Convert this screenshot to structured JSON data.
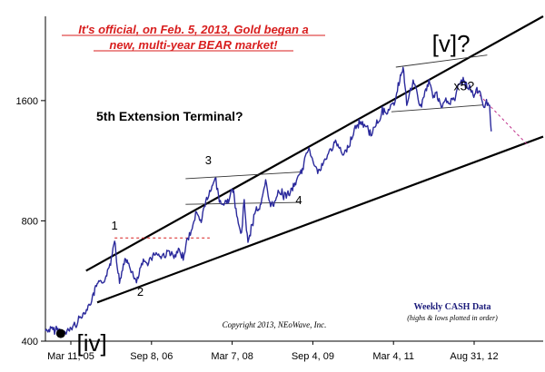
{
  "chart_data": {
    "type": "line",
    "title_lines": [
      "It's official, on Feb. 5, 2013, Gold began a",
      "new, multi-year BEAR market!"
    ],
    "xlabel": "",
    "ylabel": "",
    "y_scale": "log",
    "ylim": [
      400,
      2600
    ],
    "yticks": [
      400,
      800,
      1600
    ],
    "x_tick_labels": [
      "Mar 11, 05",
      "Sep 8, 06",
      "Mar 7, 08",
      "Sep 4, 09",
      "Mar 4, 11",
      "Aug 31, 12"
    ],
    "xlim": [
      "2005-02-01",
      "2014-03-31"
    ],
    "grid": false,
    "series": [
      {
        "name": "",
        "color": "#2b2a9c",
        "points": [
          [
            "2005-02-01",
            425
          ],
          [
            "2005-04-15",
            428
          ],
          [
            "2005-06-15",
            418
          ],
          [
            "2005-08-15",
            438
          ],
          [
            "2005-09-30",
            462
          ],
          [
            "2005-11-15",
            485
          ],
          [
            "2005-12-15",
            515
          ],
          [
            "2006-01-15",
            555
          ],
          [
            "2006-02-15",
            558
          ],
          [
            "2006-03-15",
            580
          ],
          [
            "2006-04-15",
            630
          ],
          [
            "2006-05-12",
            725
          ],
          [
            "2006-05-25",
            645
          ],
          [
            "2006-06-14",
            560
          ],
          [
            "2006-07-15",
            635
          ],
          [
            "2006-08-15",
            625
          ],
          [
            "2006-09-15",
            580
          ],
          [
            "2006-10-06",
            560
          ],
          [
            "2006-11-15",
            625
          ],
          [
            "2006-12-15",
            630
          ],
          [
            "2007-02-15",
            668
          ],
          [
            "2007-03-15",
            650
          ],
          [
            "2007-05-15",
            670
          ],
          [
            "2007-06-15",
            645
          ],
          [
            "2007-07-15",
            670
          ],
          [
            "2007-08-16",
            655
          ],
          [
            "2007-09-15",
            720
          ],
          [
            "2007-10-15",
            760
          ],
          [
            "2007-11-08",
            840
          ],
          [
            "2007-12-15",
            800
          ],
          [
            "2008-01-15",
            900
          ],
          [
            "2008-02-15",
            940
          ],
          [
            "2008-03-17",
            1030
          ],
          [
            "2008-04-15",
            900
          ],
          [
            "2008-05-15",
            880
          ],
          [
            "2008-06-15",
            900
          ],
          [
            "2008-07-15",
            960
          ],
          [
            "2008-08-15",
            800
          ],
          [
            "2008-09-11",
            740
          ],
          [
            "2008-09-29",
            900
          ],
          [
            "2008-10-24",
            700
          ],
          [
            "2008-11-15",
            760
          ],
          [
            "2008-12-15",
            860
          ],
          [
            "2009-01-15",
            860
          ],
          [
            "2009-02-20",
            1000
          ],
          [
            "2009-03-15",
            900
          ],
          [
            "2009-04-15",
            870
          ],
          [
            "2009-05-15",
            960
          ],
          [
            "2009-06-15",
            930
          ],
          [
            "2009-07-15",
            930
          ],
          [
            "2009-08-15",
            950
          ],
          [
            "2009-09-15",
            1010
          ],
          [
            "2009-10-15",
            1050
          ],
          [
            "2009-11-15",
            1140
          ],
          [
            "2009-12-03",
            1220
          ],
          [
            "2010-01-15",
            1120
          ],
          [
            "2010-02-05",
            1055
          ],
          [
            "2010-03-15",
            1110
          ],
          [
            "2010-05-15",
            1230
          ],
          [
            "2010-06-15",
            1250
          ],
          [
            "2010-07-28",
            1160
          ],
          [
            "2010-09-15",
            1270
          ],
          [
            "2010-10-15",
            1370
          ],
          [
            "2010-11-15",
            1400
          ],
          [
            "2010-12-15",
            1400
          ],
          [
            "2011-01-28",
            1320
          ],
          [
            "2011-03-15",
            1420
          ],
          [
            "2011-04-15",
            1500
          ],
          [
            "2011-05-15",
            1500
          ],
          [
            "2011-06-15",
            1530
          ],
          [
            "2011-07-15",
            1630
          ],
          [
            "2011-08-10",
            1800
          ],
          [
            "2011-08-23",
            1900
          ],
          [
            "2011-09-06",
            1920
          ],
          [
            "2011-09-26",
            1560
          ],
          [
            "2011-10-15",
            1650
          ],
          [
            "2011-11-08",
            1800
          ],
          [
            "2011-12-29",
            1530
          ],
          [
            "2012-01-15",
            1640
          ],
          [
            "2012-02-28",
            1790
          ],
          [
            "2012-03-15",
            1650
          ],
          [
            "2012-04-15",
            1650
          ],
          [
            "2012-05-16",
            1530
          ],
          [
            "2012-06-15",
            1600
          ],
          [
            "2012-07-15",
            1590
          ],
          [
            "2012-08-15",
            1620
          ],
          [
            "2012-09-15",
            1770
          ],
          [
            "2012-10-04",
            1795
          ],
          [
            "2012-11-15",
            1720
          ],
          [
            "2012-12-15",
            1660
          ],
          [
            "2013-01-15",
            1690
          ],
          [
            "2013-02-05",
            1670
          ],
          [
            "2013-02-20",
            1560
          ],
          [
            "2013-03-15",
            1590
          ],
          [
            "2013-04-05",
            1550
          ],
          [
            "2013-04-16",
            1340
          ]
        ]
      }
    ],
    "wave_labels": [
      {
        "text": "1",
        "x": "2006-05-12",
        "y": 760
      },
      {
        "text": "2",
        "x": "2006-11-01",
        "y": 520
      },
      {
        "text": "3",
        "x": "2008-02-01",
        "y": 1110
      },
      {
        "text": "4",
        "x": "2009-10-01",
        "y": 880
      },
      {
        "text": "[iv]",
        "x": "2005-12-10",
        "y": 378
      },
      {
        "text": "[v]?",
        "x": "2012-07-20",
        "y": 2120
      },
      {
        "text": "x5?",
        "x": "2012-10-15",
        "y": 1700
      }
    ],
    "start_marker": {
      "x": "2005-05-15",
      "y": 418
    },
    "annotations": {
      "pattern_label": "5th Extension Terminal?",
      "data_note": "Weekly CASH Data",
      "data_subnote": "(highs & lows plotted in order)",
      "copyright": "Copyright 2013, NEoWave, Inc."
    },
    "trendlines": [
      {
        "from": [
          "2005-11-01",
          600
        ],
        "to": [
          "2014-03-31",
          2600
        ],
        "style": "solid-thick"
      },
      {
        "from": [
          "2006-01-15",
          500
        ],
        "to": [
          "2014-03-31",
          1300
        ],
        "style": "solid-thick"
      },
      {
        "from": [
          "2007-09-01",
          1020
        ],
        "to": [
          "2009-10-15",
          1060
        ],
        "style": "solid-thin"
      },
      {
        "from": [
          "2007-09-01",
          880
        ],
        "to": [
          "2009-10-15",
          890
        ],
        "style": "solid-thin"
      },
      {
        "from": [
          "2011-07-15",
          1940
        ],
        "to": [
          "2013-03-20",
          2080
        ],
        "style": "solid-thin"
      },
      {
        "from": [
          "2011-06-15",
          1500
        ],
        "to": [
          "2013-02-20",
          1560
        ],
        "style": "solid-thin"
      },
      {
        "from": [
          "2006-05-12",
          725
        ],
        "to": [
          "2008-02-10",
          725
        ],
        "style": "dashed-red"
      },
      {
        "from": [
          "2013-01-01",
          1690
        ],
        "to": [
          "2013-12-25",
          1230
        ],
        "style": "dashed-pink"
      }
    ]
  }
}
